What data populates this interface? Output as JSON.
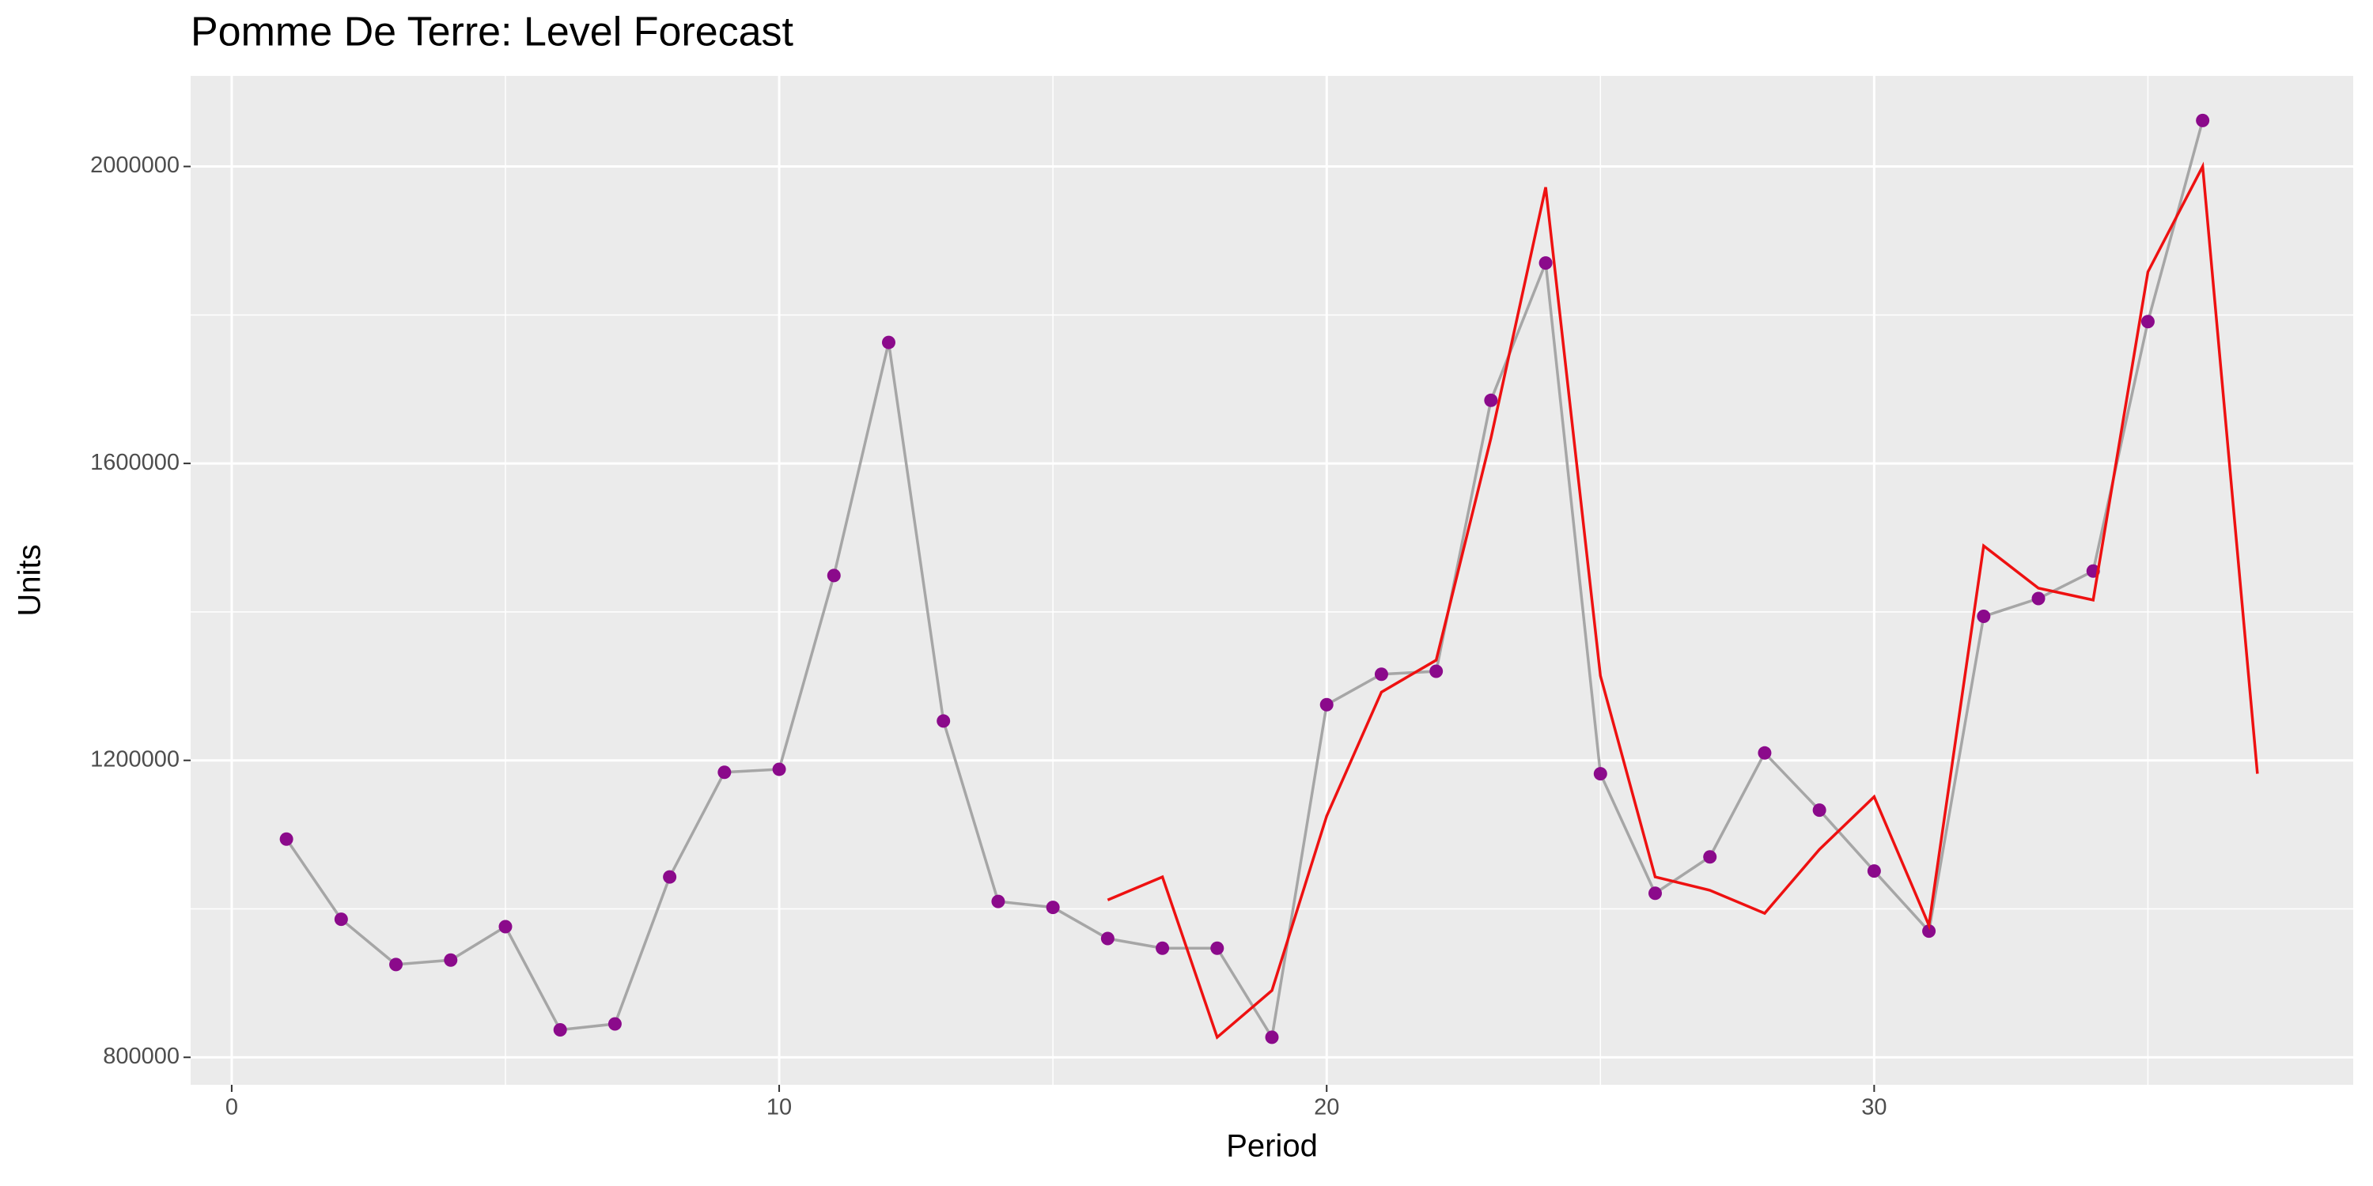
{
  "chart_data": {
    "type": "line",
    "title": "Pomme De Terre: Level Forecast",
    "x_label": "Period",
    "y_label": "Units",
    "x": [
      1,
      2,
      3,
      4,
      5,
      6,
      7,
      8,
      9,
      10,
      11,
      12,
      13,
      14,
      15,
      16,
      17,
      18,
      19,
      20,
      21,
      22,
      23,
      24,
      25,
      26,
      27,
      28,
      29,
      30,
      31,
      32,
      33,
      34,
      35,
      36,
      37
    ],
    "series": [
      {
        "color": "#a6a6a6",
        "point_color": "#8b0a8b",
        "markers": true,
        "values": [
          1094000,
          986000,
          925000,
          931000,
          976000,
          837000,
          845000,
          1043000,
          1184000,
          1188000,
          1449000,
          1763000,
          1253000,
          1010000,
          1002000,
          960000,
          947000,
          947000,
          827000,
          1275000,
          1316000,
          1320000,
          1685000,
          1870000,
          1182000,
          1021000,
          1070000,
          1210000,
          1133000,
          1051000,
          970000,
          1394000,
          1418000,
          1455000,
          1791000,
          2062000,
          null
        ]
      },
      {
        "color": "#ee1111",
        "markers": false,
        "values": [
          null,
          null,
          null,
          null,
          null,
          null,
          null,
          null,
          null,
          null,
          null,
          null,
          null,
          null,
          null,
          1012000,
          1043000,
          827000,
          890000,
          1125000,
          1292000,
          1335000,
          1634000,
          1972000,
          1314000,
          1043000,
          1025000,
          994000,
          1080000,
          1151000,
          978000,
          1489000,
          1432000,
          1416000,
          1858000,
          2000000,
          1182000
        ]
      }
    ],
    "xlim": [
      -0.75,
      38.75
    ],
    "xticks": [
      0,
      10,
      20,
      30
    ],
    "x_minor_ticks": [
      5,
      15,
      25,
      35
    ],
    "ylim": [
      763000,
      2122000
    ],
    "yticks": [
      800000,
      1200000,
      1600000,
      2000000
    ],
    "y_minor_ticks": [
      1000000,
      1400000,
      1800000
    ],
    "grid": true
  }
}
